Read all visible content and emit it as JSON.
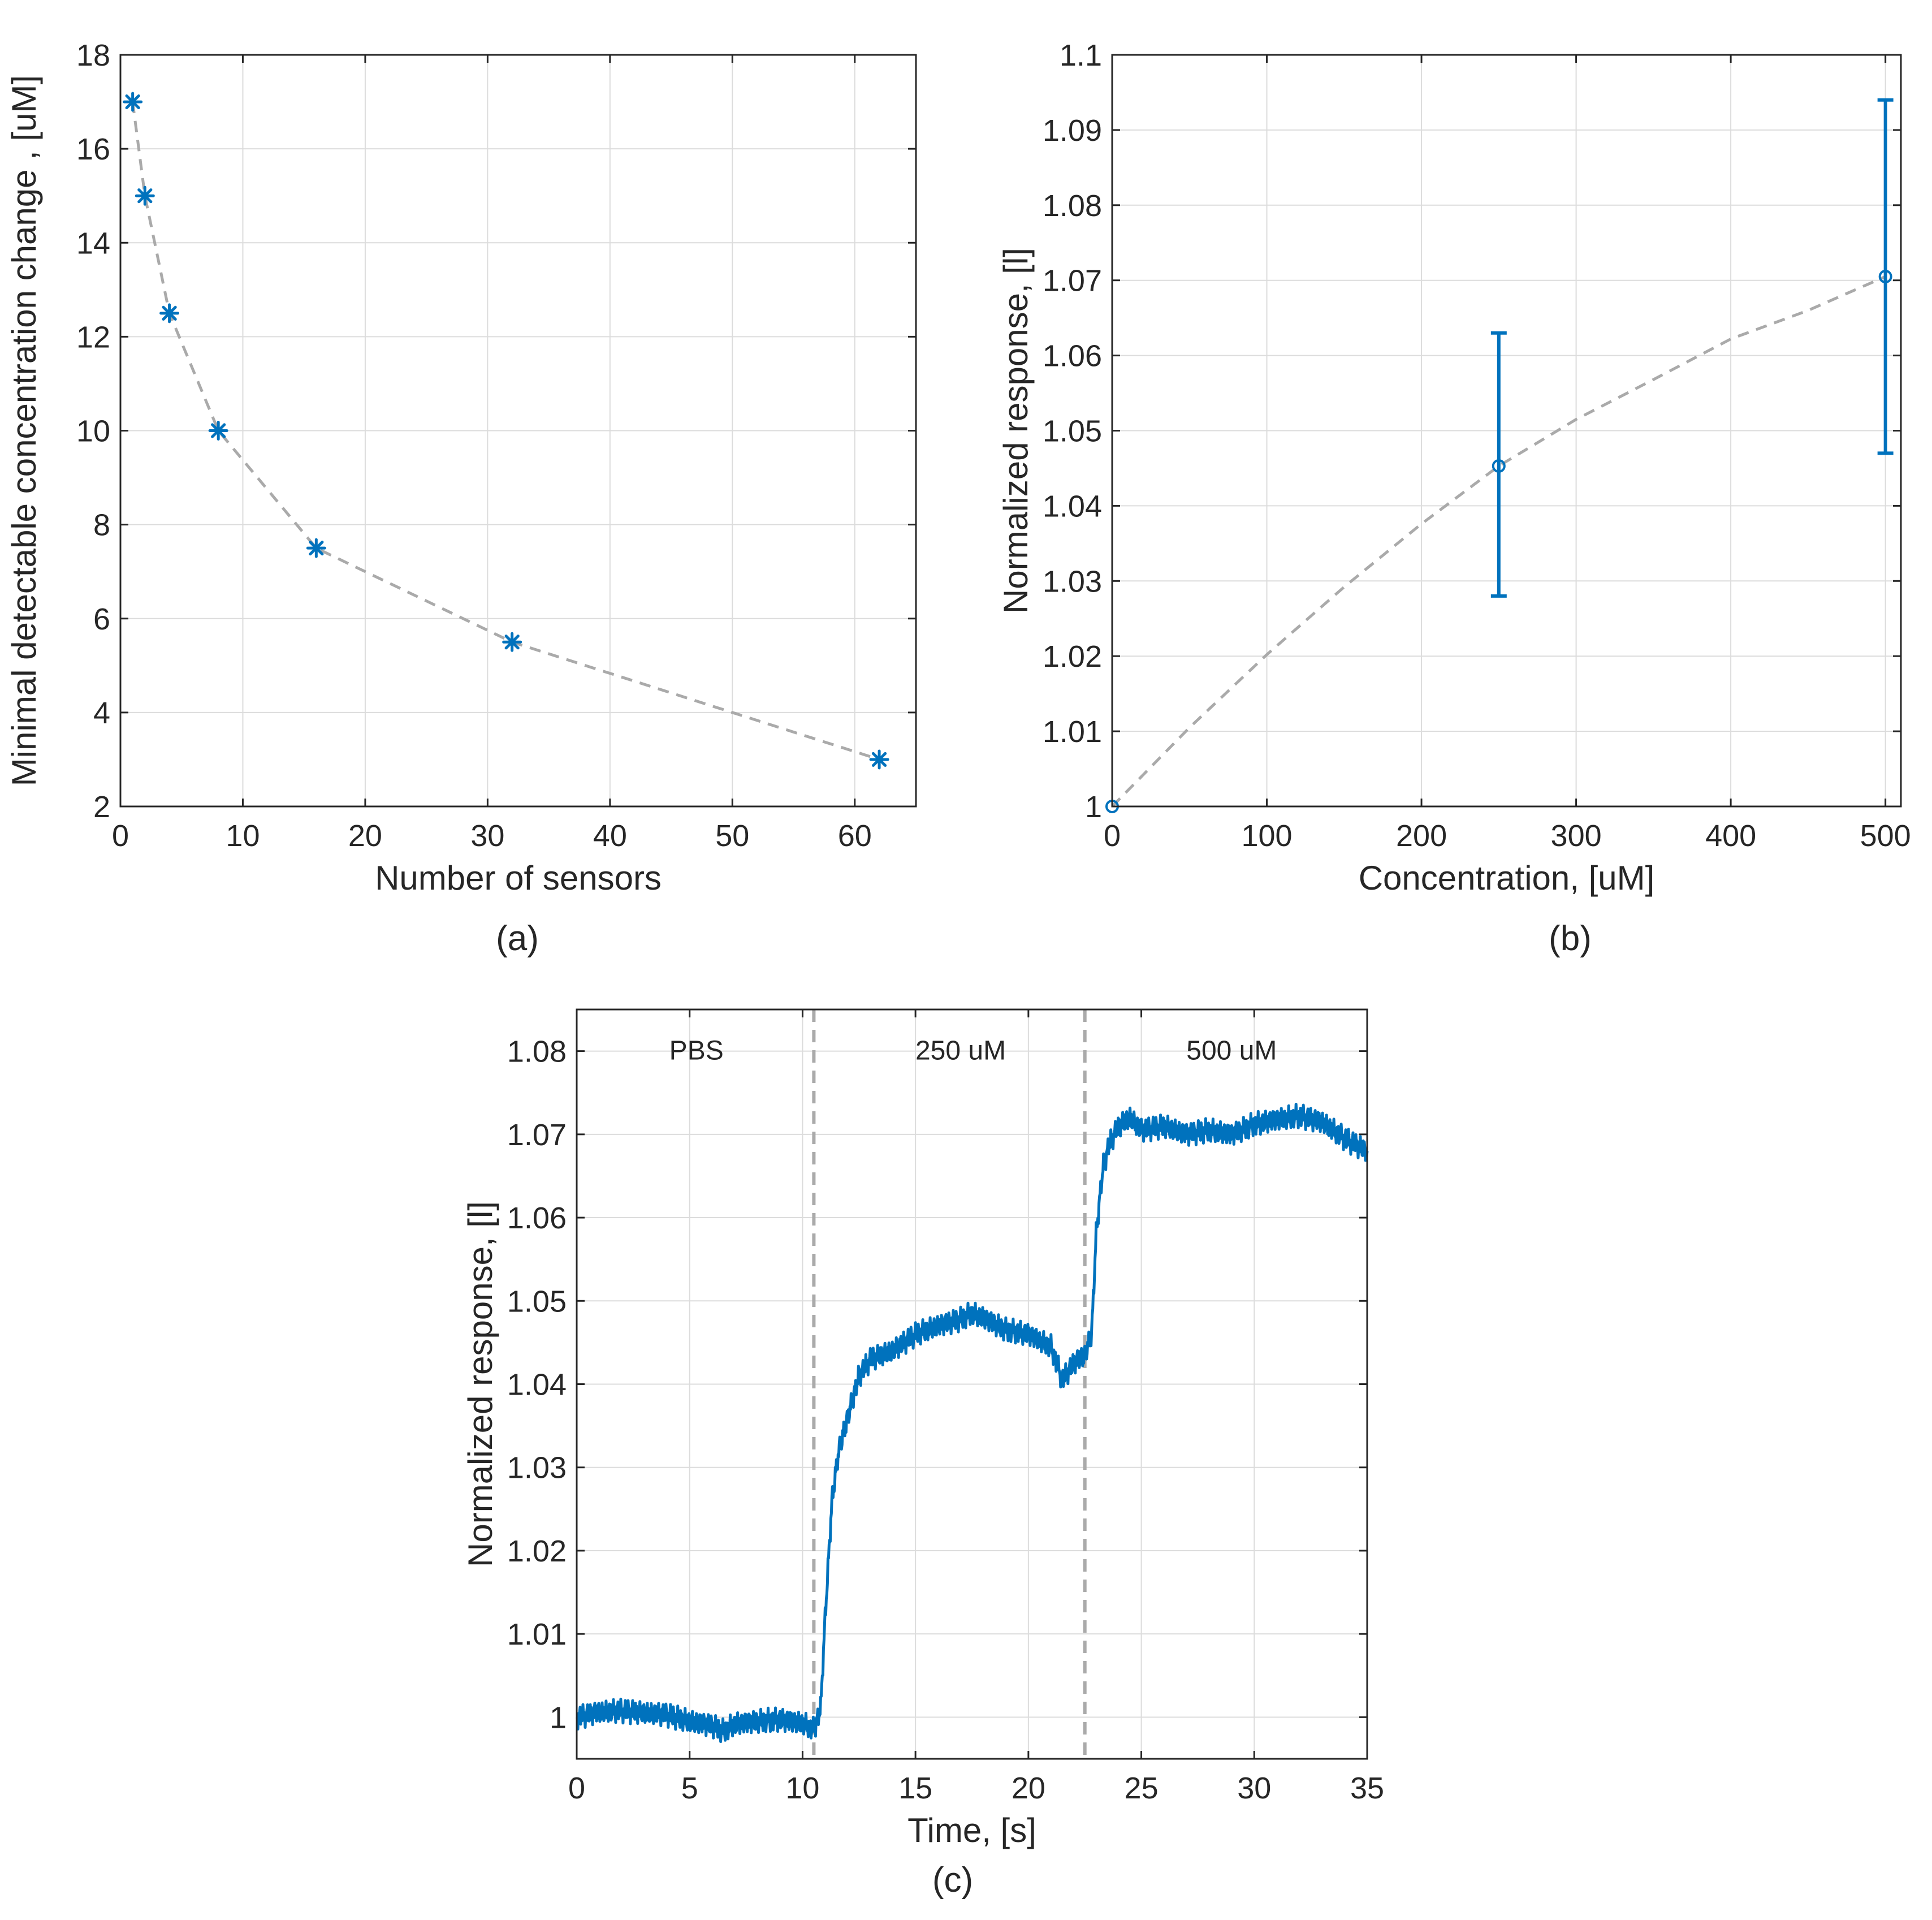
{
  "chart_data": [
    {
      "id": "a",
      "panel_label": "(a)",
      "type": "scatter",
      "xlabel": "Number of sensors",
      "ylabel": "Minimal detectable concentration change , [uM]",
      "xlim": [
        0,
        65
      ],
      "ylim": [
        2,
        18
      ],
      "xticks": [
        0,
        10,
        20,
        30,
        40,
        50,
        60
      ],
      "yticks": [
        2,
        4,
        6,
        8,
        10,
        12,
        14,
        16,
        18
      ],
      "grid": true,
      "marker": "asterisk",
      "colors": {
        "marker": "#0072BD",
        "fit": "#aaaaaa"
      },
      "series": [
        {
          "x": [
            1,
            2,
            4,
            8,
            16,
            32,
            62
          ],
          "y": [
            17,
            15,
            12.5,
            10,
            7.5,
            5.5,
            3
          ]
        }
      ],
      "fit_line": {
        "style": "dashed",
        "x": [
          1,
          2,
          4,
          8,
          16,
          32,
          62
        ],
        "y": [
          17,
          15,
          12.5,
          10,
          7.5,
          5.5,
          3
        ]
      }
    },
    {
      "id": "b",
      "panel_label": "(b)",
      "type": "scatter",
      "xlabel": "Concentration, [uM]",
      "ylabel": "Normalized response, [l]",
      "xlim": [
        0,
        510
      ],
      "ylim": [
        1,
        1.1
      ],
      "xticks": [
        0,
        100,
        200,
        300,
        400,
        500
      ],
      "yticks": [
        1,
        1.01,
        1.02,
        1.03,
        1.04,
        1.05,
        1.06,
        1.07,
        1.08,
        1.09,
        1.1
      ],
      "grid": true,
      "marker": "circle",
      "colors": {
        "marker": "#0072BD",
        "fit": "#aaaaaa"
      },
      "series": [
        {
          "x": [
            0,
            250,
            500
          ],
          "y": [
            1.0,
            1.0453,
            1.0705
          ],
          "err_low": [
            0,
            0.0173,
            0.0235
          ],
          "err_high": [
            0,
            0.0177,
            0.0235
          ]
        }
      ],
      "fit_line": {
        "style": "dashed",
        "x": [
          0,
          50,
          100,
          150,
          200,
          250,
          300,
          350,
          400,
          450,
          500
        ],
        "y": [
          1.0,
          1.0105,
          1.0202,
          1.0292,
          1.0376,
          1.0453,
          1.0515,
          1.0568,
          1.0622,
          1.066,
          1.0705
        ]
      }
    },
    {
      "id": "c",
      "panel_label": "(c)",
      "type": "line",
      "xlabel": "Time, [s]",
      "ylabel": "Normalized response, [l]",
      "xlim": [
        0,
        35
      ],
      "ylim": [
        0.995,
        1.085
      ],
      "xticks": [
        0,
        5,
        10,
        15,
        20,
        25,
        30,
        35
      ],
      "yticks": [
        1,
        1.01,
        1.02,
        1.03,
        1.04,
        1.05,
        1.06,
        1.07,
        1.08
      ],
      "grid": true,
      "colors": {
        "line": "#0072BD",
        "divider": "#aaaaaa"
      },
      "dividers": [
        10.5,
        22.5
      ],
      "annotations": [
        {
          "text": "PBS",
          "x": 5.3,
          "y": 1.079
        },
        {
          "text": "250 uM",
          "x": 17.0,
          "y": 1.079
        },
        {
          "text": "500 uM",
          "x": 29.0,
          "y": 1.079
        }
      ],
      "series": [
        {
          "x": [
            0,
            1,
            2,
            3,
            4,
            5,
            6,
            6.5,
            7,
            8,
            9,
            10,
            10.5,
            10.8,
            11,
            11.3,
            11.6,
            12,
            12.5,
            13,
            14,
            15,
            16,
            17,
            17.5,
            18,
            19,
            20,
            21,
            21.5,
            22,
            22.5,
            22.8,
            23,
            23.3,
            23.6,
            24,
            24.5,
            25,
            26,
            27,
            28,
            29,
            30,
            31,
            32,
            33,
            34,
            35
          ],
          "y": [
            1.0,
            1.0006,
            1.0008,
            1.0005,
            1.0003,
            0.9995,
            0.999,
            0.9983,
            0.9992,
            0.9995,
            0.9997,
            0.9993,
            0.9985,
            1.001,
            1.012,
            1.026,
            1.032,
            1.036,
            1.041,
            1.043,
            1.044,
            1.046,
            1.047,
            1.0478,
            1.0485,
            1.048,
            1.0465,
            1.046,
            1.0445,
            1.0405,
            1.0425,
            1.0435,
            1.046,
            1.058,
            1.066,
            1.069,
            1.071,
            1.072,
            1.0705,
            1.071,
            1.07,
            1.0705,
            1.07,
            1.0712,
            1.0718,
            1.0722,
            1.0715,
            1.0695,
            1.068
          ]
        }
      ]
    }
  ]
}
